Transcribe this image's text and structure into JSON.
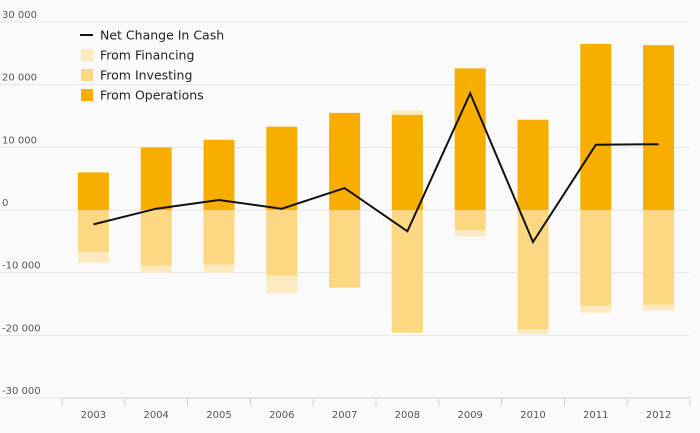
{
  "chart_data": {
    "type": "bar",
    "stacked": true,
    "categories": [
      "2003",
      "2004",
      "2005",
      "2006",
      "2007",
      "2008",
      "2009",
      "2010",
      "2011",
      "2012"
    ],
    "series": [
      {
        "name": "From Operations",
        "kind": "bar",
        "color": "#f7ae00",
        "values": [
          6000,
          10000,
          11200,
          13300,
          15500,
          15200,
          22600,
          14400,
          26500,
          26300
        ]
      },
      {
        "name": "From Investing",
        "kind": "bar",
        "color": "#fdd882",
        "values": [
          -6700,
          -8900,
          -8700,
          -10500,
          -12400,
          -19600,
          -3200,
          -19000,
          -15300,
          -15100
        ]
      },
      {
        "name": "From Financing",
        "kind": "bar",
        "color": "#feeac0",
        "values": [
          -1700,
          -1100,
          -1300,
          -2800,
          0,
          700,
          -1000,
          -800,
          -1100,
          -900
        ]
      },
      {
        "name": "Net Change In Cash",
        "kind": "line",
        "color": "#111111",
        "values": [
          -2300,
          200,
          1600,
          200,
          3500,
          -3400,
          18600,
          -5100,
          10400,
          10500
        ]
      }
    ],
    "ylim": [
      -30000,
      30000
    ],
    "yticks": [
      -30000,
      -20000,
      -10000,
      0,
      10000,
      20000,
      30000
    ],
    "ytick_labels": [
      "-30 000",
      "-20 000",
      "-10 000",
      "0",
      "10 000",
      "20 000",
      "30 000"
    ],
    "legend": {
      "placement": "top-left",
      "entries": [
        "Net Change In Cash",
        "From Financing",
        "From Investing",
        "From Operations"
      ]
    },
    "grid": true
  }
}
